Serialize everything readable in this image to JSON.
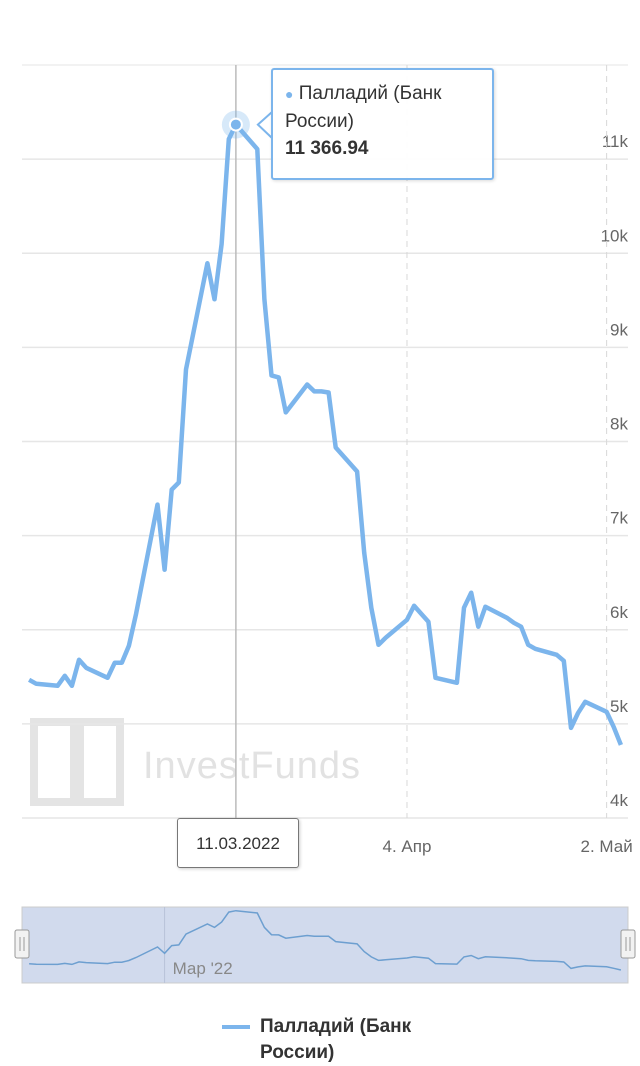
{
  "chart_data": {
    "type": "line",
    "x": [
      "2022-02-10",
      "2022-02-11",
      "2022-02-14",
      "2022-02-15",
      "2022-02-16",
      "2022-02-17",
      "2022-02-18",
      "2022-02-21",
      "2022-02-22",
      "2022-02-23",
      "2022-02-24",
      "2022-02-25",
      "2022-02-28",
      "2022-03-01",
      "2022-03-02",
      "2022-03-03",
      "2022-03-04",
      "2022-03-07",
      "2022-03-08",
      "2022-03-09",
      "2022-03-10",
      "2022-03-11",
      "2022-03-14",
      "2022-03-15",
      "2022-03-16",
      "2022-03-17",
      "2022-03-18",
      "2022-03-21",
      "2022-03-22",
      "2022-03-23",
      "2022-03-24",
      "2022-03-25",
      "2022-03-28",
      "2022-03-29",
      "2022-03-30",
      "2022-03-31",
      "2022-04-01",
      "2022-04-04",
      "2022-04-05",
      "2022-04-06",
      "2022-04-07",
      "2022-04-08",
      "2022-04-11",
      "2022-04-12",
      "2022-04-13",
      "2022-04-14",
      "2022-04-15",
      "2022-04-18",
      "2022-04-19",
      "2022-04-20",
      "2022-04-21",
      "2022-04-22",
      "2022-04-25",
      "2022-04-26",
      "2022-04-27",
      "2022-04-28",
      "2022-04-29",
      "2022-05-02",
      "2022-05-03",
      "2022-05-04"
    ],
    "series": [
      {
        "name": "Палладий (Банк России)",
        "color": "#7cb5ec",
        "values": [
          5468,
          5426,
          5404,
          5511,
          5404,
          5681,
          5596,
          5489,
          5649,
          5649,
          5830,
          6170,
          7330,
          6638,
          7489,
          7564,
          8766,
          9894,
          9511,
          10096,
          11213,
          11366.94,
          11106,
          9511,
          8702,
          8681,
          8309,
          8606,
          8532,
          8532,
          8521,
          7936,
          7681,
          6819,
          6234,
          5840,
          5915,
          6106,
          6255,
          6170,
          6085,
          5489,
          5436,
          6234,
          6394,
          6032,
          6245,
          6128,
          6074,
          6032,
          5840,
          5798,
          5734,
          5670,
          4957,
          5117,
          5234,
          5128,
          4968,
          4777
        ]
      }
    ],
    "xlim": [
      "2022-02-09",
      "2022-05-05"
    ],
    "xticks": [
      {
        "value": "2022-04-04",
        "label": "4. Апр"
      },
      {
        "value": "2022-05-02",
        "label": "2. Май"
      }
    ],
    "ylim": [
      4000,
      12000
    ],
    "yticks": [
      {
        "value": 4000,
        "label": "4k"
      },
      {
        "value": 5000,
        "label": "5k"
      },
      {
        "value": 6000,
        "label": "6k"
      },
      {
        "value": 7000,
        "label": "7k"
      },
      {
        "value": 8000,
        "label": "8k"
      },
      {
        "value": 9000,
        "label": "9k"
      },
      {
        "value": 10000,
        "label": "10k"
      },
      {
        "value": 11000,
        "label": "11k"
      }
    ],
    "grid": true,
    "tooltip": {
      "x": "2022-03-11",
      "x_label": "11.03.2022",
      "value_label": "11 366.94"
    },
    "navigator": {
      "tick": {
        "value": "2022-03-01",
        "label": "Мар '22"
      }
    },
    "watermark": "InvestFunds"
  }
}
